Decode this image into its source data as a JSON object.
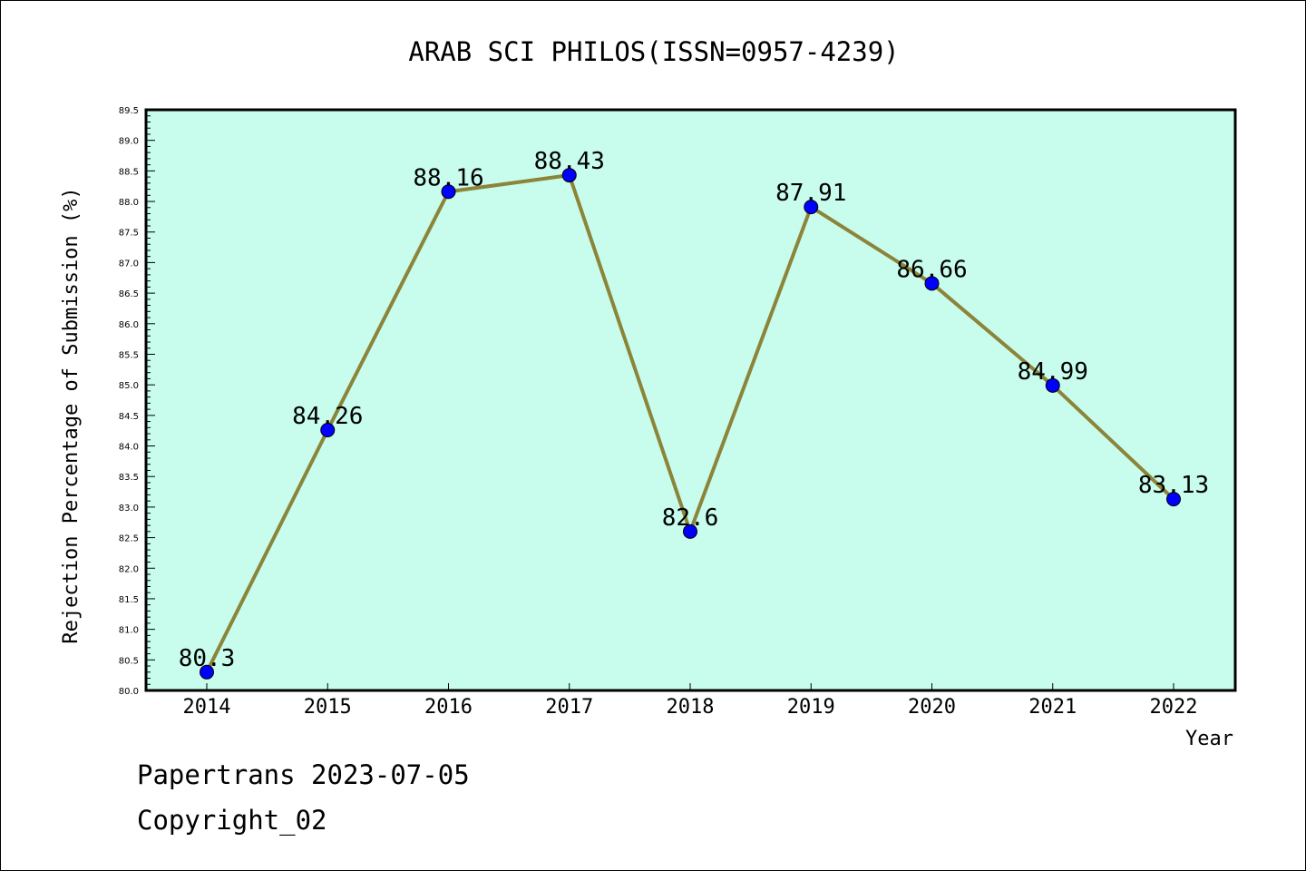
{
  "chart_data": {
    "type": "line",
    "title": "ARAB SCI PHILOS(ISSN=0957-4239)",
    "xlabel": "Year",
    "ylabel": "Rejection Percentage of Submission (%)",
    "categories": [
      "2014",
      "2015",
      "2016",
      "2017",
      "2018",
      "2019",
      "2020",
      "2021",
      "2022"
    ],
    "values": [
      80.3,
      84.26,
      88.16,
      88.43,
      82.6,
      87.91,
      86.66,
      84.99,
      83.13
    ],
    "data_labels": [
      "80.3",
      "84.26",
      "88.16",
      "88.43",
      "82.6",
      "87.91",
      "86.66",
      "84.99",
      "83.13"
    ],
    "ylim": [
      80.0,
      89.5
    ],
    "yticks": [
      "80.0",
      "80.5",
      "81.0",
      "81.5",
      "82.0",
      "82.5",
      "83.0",
      "83.5",
      "84.0",
      "84.5",
      "85.0",
      "85.5",
      "86.0",
      "86.5",
      "87.0",
      "87.5",
      "88.0",
      "88.5",
      "89.0",
      "89.5"
    ],
    "grid": false,
    "colors": {
      "plot_background": "#c8fcec",
      "line": "#8b8439",
      "marker": "#0000ff"
    }
  },
  "footer": {
    "line1": "Papertrans 2023-07-05",
    "line2": "Copyright_02"
  }
}
